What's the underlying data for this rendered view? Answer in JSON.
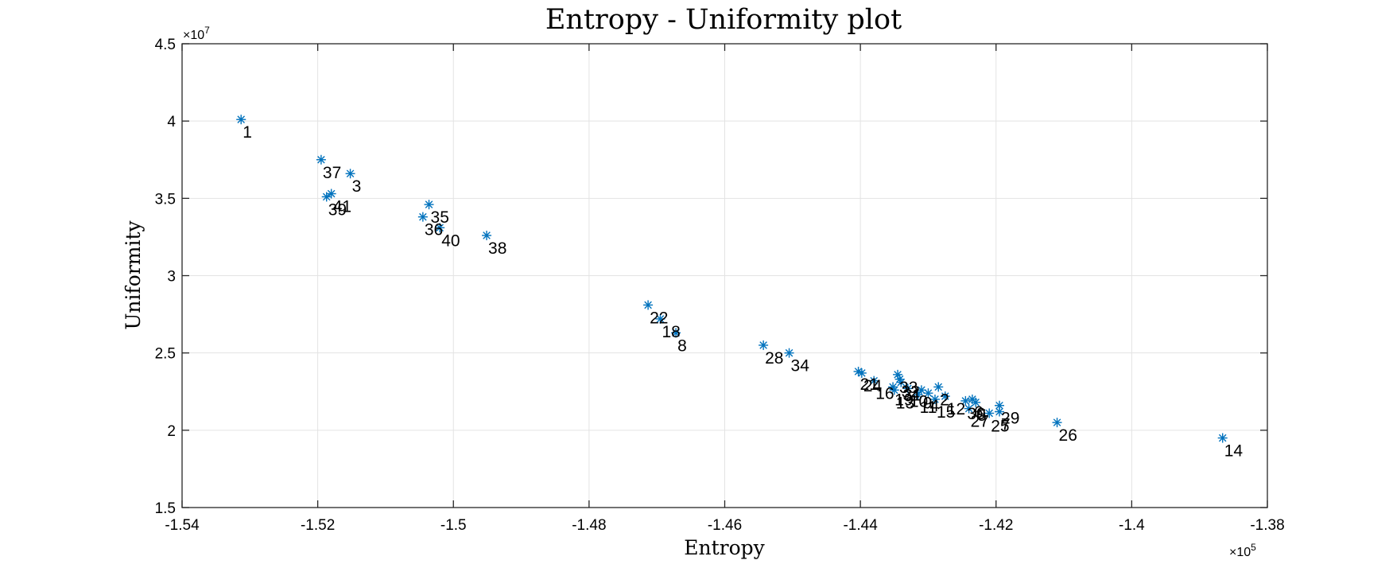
{
  "chart_data": {
    "type": "scatter",
    "title": "Entropy - Uniformity plot",
    "xlabel": "Entropy",
    "ylabel": "Uniformity",
    "x_exponent_label": "×10",
    "x_exponent_power": "5",
    "y_exponent_label": "×10",
    "y_exponent_power": "7",
    "xlim": [
      -1.54,
      -1.38
    ],
    "ylim": [
      1.5,
      4.5
    ],
    "x_scale_factor": 100000,
    "y_scale_factor": 10000000,
    "xticks": [
      -1.54,
      -1.52,
      -1.5,
      -1.48,
      -1.46,
      -1.44,
      -1.42,
      -1.4,
      -1.38
    ],
    "xtick_labels": [
      "-1.54",
      "-1.52",
      "-1.5",
      "-1.48",
      "-1.46",
      "-1.44",
      "-1.42",
      "-1.4",
      "-1.38"
    ],
    "yticks": [
      1.5,
      2,
      2.5,
      3,
      3.5,
      4,
      4.5
    ],
    "ytick_labels": [
      "1.5",
      "2",
      "2.5",
      "3",
      "3.5",
      "4",
      "4.5"
    ],
    "grid": true,
    "marker": "asterisk",
    "marker_color": "#0072BD",
    "points": [
      {
        "label": "1",
        "x": -1.5313,
        "y": 4.01
      },
      {
        "label": "37",
        "x": -1.5195,
        "y": 3.75
      },
      {
        "label": "3",
        "x": -1.5152,
        "y": 3.66
      },
      {
        "label": "41",
        "x": -1.518,
        "y": 3.53
      },
      {
        "label": "39",
        "x": -1.5187,
        "y": 3.51
      },
      {
        "label": "35",
        "x": -1.5036,
        "y": 3.46
      },
      {
        "label": "36",
        "x": -1.5045,
        "y": 3.38
      },
      {
        "label": "40",
        "x": -1.502,
        "y": 3.31
      },
      {
        "label": "38",
        "x": -1.4951,
        "y": 3.26
      },
      {
        "label": "22",
        "x": -1.4713,
        "y": 2.81
      },
      {
        "label": "18",
        "x": -1.4695,
        "y": 2.72
      },
      {
        "label": "8",
        "x": -1.4672,
        "y": 2.63
      },
      {
        "label": "28",
        "x": -1.4543,
        "y": 2.55
      },
      {
        "label": "34",
        "x": -1.4505,
        "y": 2.5
      },
      {
        "label": "21",
        "x": -1.4403,
        "y": 2.38
      },
      {
        "label": "24",
        "x": -1.4398,
        "y": 2.37
      },
      {
        "label": "16",
        "x": -1.438,
        "y": 2.32
      },
      {
        "label": "33",
        "x": -1.4345,
        "y": 2.36
      },
      {
        "label": "32",
        "x": -1.4342,
        "y": 2.33
      },
      {
        "label": "31",
        "x": -1.434,
        "y": 2.31
      },
      {
        "label": "19",
        "x": -1.4352,
        "y": 2.28
      },
      {
        "label": "13",
        "x": -1.435,
        "y": 2.26
      },
      {
        "label": "10",
        "x": -1.433,
        "y": 2.27
      },
      {
        "label": "9",
        "x": -1.431,
        "y": 2.26
      },
      {
        "label": "4",
        "x": -1.43,
        "y": 2.24
      },
      {
        "label": "11",
        "x": -1.4315,
        "y": 2.23
      },
      {
        "label": "2",
        "x": -1.4285,
        "y": 2.28
      },
      {
        "label": "12",
        "x": -1.4275,
        "y": 2.22
      },
      {
        "label": "15",
        "x": -1.429,
        "y": 2.2
      },
      {
        "label": "30",
        "x": -1.4245,
        "y": 2.19
      },
      {
        "label": "6",
        "x": -1.4235,
        "y": 2.2
      },
      {
        "label": "5",
        "x": -1.423,
        "y": 2.18
      },
      {
        "label": "29",
        "x": -1.4195,
        "y": 2.16
      },
      {
        "label": "27",
        "x": -1.424,
        "y": 2.14
      },
      {
        "label": "25",
        "x": -1.421,
        "y": 2.11
      },
      {
        "label": "7",
        "x": -1.4195,
        "y": 2.12
      },
      {
        "label": "26",
        "x": -1.411,
        "y": 2.05
      },
      {
        "label": "14",
        "x": -1.3866,
        "y": 1.95
      }
    ]
  }
}
